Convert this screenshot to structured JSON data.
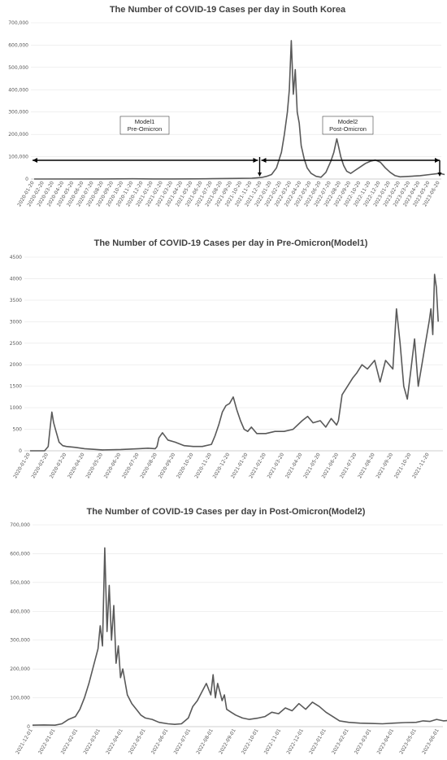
{
  "chart_data": [
    {
      "type": "line",
      "title": "The Number of COVID-19 Cases per day  in South Korea",
      "xlabel": "",
      "ylabel": "",
      "ylim": [
        0,
        700000
      ],
      "y_ticks": [
        "0",
        "100,000",
        "200,000",
        "300,000",
        "400,000",
        "500,000",
        "600,000",
        "700,000"
      ],
      "x_ticks": [
        "2020-01-20",
        "2020-02-20",
        "2020-03-20",
        "2020-04-20",
        "2020-05-20",
        "2020-06-20",
        "2020-07-20",
        "2020-08-20",
        "2020-09-20",
        "2020-10-20",
        "2020-11-20",
        "2020-12-20",
        "2021-01-20",
        "2021-02-20",
        "2021-03-20",
        "2021-04-20",
        "2021-05-20",
        "2021-06-20",
        "2021-07-20",
        "2021-08-20",
        "2021-09-20",
        "2021-10-20",
        "2021-11-20",
        "2021-12-20",
        "2022-01-20",
        "2022-02-20",
        "2022-03-20",
        "2022-04-20",
        "2022-05-20",
        "2022-06-20",
        "2022-07-20",
        "2022-08-20",
        "2022-09-20",
        "2022-10-20",
        "2022-11-20",
        "2022-12-20",
        "2023-01-20",
        "2023-02-20",
        "2023-03-20",
        "2023-04-20",
        "2023-05-20",
        "2023-06-20"
      ],
      "series": [
        {
          "month_index": [
            0,
            6,
            7,
            10,
            12,
            14,
            16,
            18,
            20,
            22,
            22.5,
            23,
            23.5,
            24,
            24.5,
            25,
            25.3,
            25.6,
            25.8,
            26,
            26.2,
            26.4,
            26.6,
            26.8,
            27,
            27.3,
            27.6,
            28,
            28.5,
            29,
            29.5,
            30,
            30.3,
            30.6,
            30.8,
            31,
            31.3,
            31.6,
            32,
            32.5,
            33,
            33.5,
            34,
            34.5,
            35,
            35.5,
            36,
            36.5,
            37,
            38,
            39,
            40,
            41,
            41.5
          ],
          "values": [
            0,
            400,
            300,
            1000,
            500,
            450,
            600,
            1500,
            2500,
            3500,
            5000,
            7000,
            12000,
            20000,
            50000,
            120000,
            200000,
            300000,
            400000,
            620000,
            380000,
            490000,
            300000,
            250000,
            150000,
            90000,
            50000,
            25000,
            12000,
            8000,
            30000,
            80000,
            120000,
            180000,
            140000,
            100000,
            60000,
            35000,
            25000,
            40000,
            55000,
            70000,
            80000,
            85000,
            75000,
            50000,
            30000,
            15000,
            10000,
            12000,
            15000,
            20000,
            25000,
            20000
          ]
        }
      ],
      "annotations": [
        {
          "line1": "Model1",
          "line2": "Pre-Omicron"
        },
        {
          "line1": "Model2",
          "line2": "Post-Omicron"
        }
      ]
    },
    {
      "type": "line",
      "title": "The Number of COVID-19 Cases per day in Pre-Omicron(Model1)",
      "xlabel": "",
      "ylabel": "",
      "ylim": [
        0,
        4500
      ],
      "y_ticks": [
        "0",
        "500",
        "1000",
        "1500",
        "2000",
        "2500",
        "3000",
        "3500",
        "4000",
        "4500"
      ],
      "x_ticks": [
        "2020-01-20",
        "2020-02-20",
        "2020-03-20",
        "2020-04-20",
        "2020-05-20",
        "2020-06-20",
        "2020-07-20",
        "2020-08-20",
        "2020-09-20",
        "2020-10-20",
        "2020-11-20",
        "2020-12-20",
        "2021-01-20",
        "2021-02-20",
        "2021-03-20",
        "2021-04-20",
        "2021-05-20",
        "2021-06-20",
        "2021-07-20",
        "2021-08-20",
        "2021-09-20",
        "2021-10-20",
        "2021-11-20"
      ],
      "series": [
        {
          "month_index": [
            0,
            0.8,
            1,
            1.1,
            1.2,
            1.3,
            1.4,
            1.6,
            1.8,
            2,
            2.5,
            3,
            4,
            5,
            5.5,
            6,
            6.5,
            6.9,
            7,
            7.1,
            7.3,
            7.6,
            8,
            8.5,
            9,
            9.5,
            10,
            10.2,
            10.4,
            10.6,
            10.8,
            11,
            11.2,
            11.4,
            11.6,
            11.8,
            12,
            12.2,
            12.5,
            13,
            13.5,
            14,
            14.5,
            15,
            15.3,
            15.6,
            16,
            16.3,
            16.6,
            16.9,
            17,
            17.2,
            17.5,
            17.8,
            18,
            18.3,
            18.6,
            19,
            19.3,
            19.6,
            20,
            20.2,
            20.4,
            20.6,
            20.8,
            21,
            21.2,
            21.4,
            21.6,
            21.8,
            22,
            22.1,
            22.2,
            22.3,
            22.4,
            22.5
          ],
          "values": [
            0,
            0,
            100,
            500,
            900,
            650,
            500,
            200,
            120,
            100,
            80,
            50,
            20,
            30,
            40,
            50,
            60,
            50,
            100,
            300,
            420,
            250,
            200,
            120,
            100,
            100,
            150,
            350,
            600,
            900,
            1050,
            1100,
            1250,
            950,
            700,
            500,
            450,
            550,
            400,
            400,
            450,
            450,
            500,
            700,
            800,
            650,
            700,
            550,
            750,
            600,
            700,
            1300,
            1500,
            1700,
            1800,
            2000,
            1900,
            2100,
            1600,
            2100,
            1900,
            3300,
            2500,
            1500,
            1200,
            1900,
            2600,
            1500,
            2000,
            2500,
            3000,
            3300,
            2700,
            4100,
            3800,
            3000
          ]
        }
      ]
    },
    {
      "type": "line",
      "title": "The Number of COVID-19 Cases per day in Post-Omicron(Model2)",
      "xlabel": "",
      "ylabel": "",
      "ylim": [
        0,
        700000
      ],
      "y_ticks": [
        "0",
        "100,000",
        "200,000",
        "300,000",
        "400,000",
        "500,000",
        "600,000",
        "700,000"
      ],
      "x_ticks": [
        "2021-12-01",
        "2022-01-01",
        "2022-02-01",
        "2022-03-01",
        "2022-04-01",
        "2022-05-01",
        "2022-06-01",
        "2022-07-01",
        "2022-08-01",
        "2022-09-01",
        "2022-10-01",
        "2022-11-01",
        "2022-12-01",
        "2023-01-01",
        "2023-02-01",
        "2023-03-01",
        "2023-04-01",
        "2023-05-01",
        "2023-06-01"
      ],
      "series": [
        {
          "month_index": [
            0,
            0.5,
            1,
            1.3,
            1.6,
            1.9,
            2.1,
            2.3,
            2.5,
            2.7,
            2.9,
            3.0,
            3.1,
            3.2,
            3.3,
            3.4,
            3.5,
            3.6,
            3.7,
            3.8,
            3.9,
            4.0,
            4.2,
            4.4,
            4.6,
            4.8,
            5,
            5.3,
            5.6,
            6,
            6.3,
            6.6,
            6.9,
            7.1,
            7.3,
            7.5,
            7.7,
            7.9,
            8.0,
            8.1,
            8.2,
            8.3,
            8.4,
            8.5,
            8.6,
            8.8,
            9,
            9.3,
            9.6,
            10,
            10.3,
            10.6,
            10.9,
            11.2,
            11.5,
            11.8,
            12.1,
            12.4,
            12.7,
            13,
            13.3,
            13.6,
            14,
            14.5,
            15,
            15.5,
            16,
            16.5,
            17,
            17.3,
            17.6,
            17.9,
            18.2,
            18.5,
            18.8,
            19.1
          ],
          "values": [
            5000,
            6000,
            5000,
            10000,
            25000,
            35000,
            60000,
            100000,
            150000,
            210000,
            270000,
            350000,
            280000,
            620000,
            330000,
            490000,
            300000,
            420000,
            220000,
            280000,
            170000,
            200000,
            110000,
            80000,
            60000,
            40000,
            30000,
            25000,
            15000,
            10000,
            8000,
            10000,
            30000,
            70000,
            90000,
            120000,
            150000,
            110000,
            180000,
            100000,
            150000,
            120000,
            90000,
            110000,
            60000,
            50000,
            40000,
            30000,
            25000,
            30000,
            35000,
            50000,
            45000,
            65000,
            55000,
            80000,
            60000,
            85000,
            70000,
            50000,
            35000,
            20000,
            15000,
            12000,
            11000,
            10000,
            12000,
            14000,
            15000,
            20000,
            18000,
            25000,
            20000,
            22000,
            15000,
            10000
          ]
        }
      ]
    }
  ]
}
